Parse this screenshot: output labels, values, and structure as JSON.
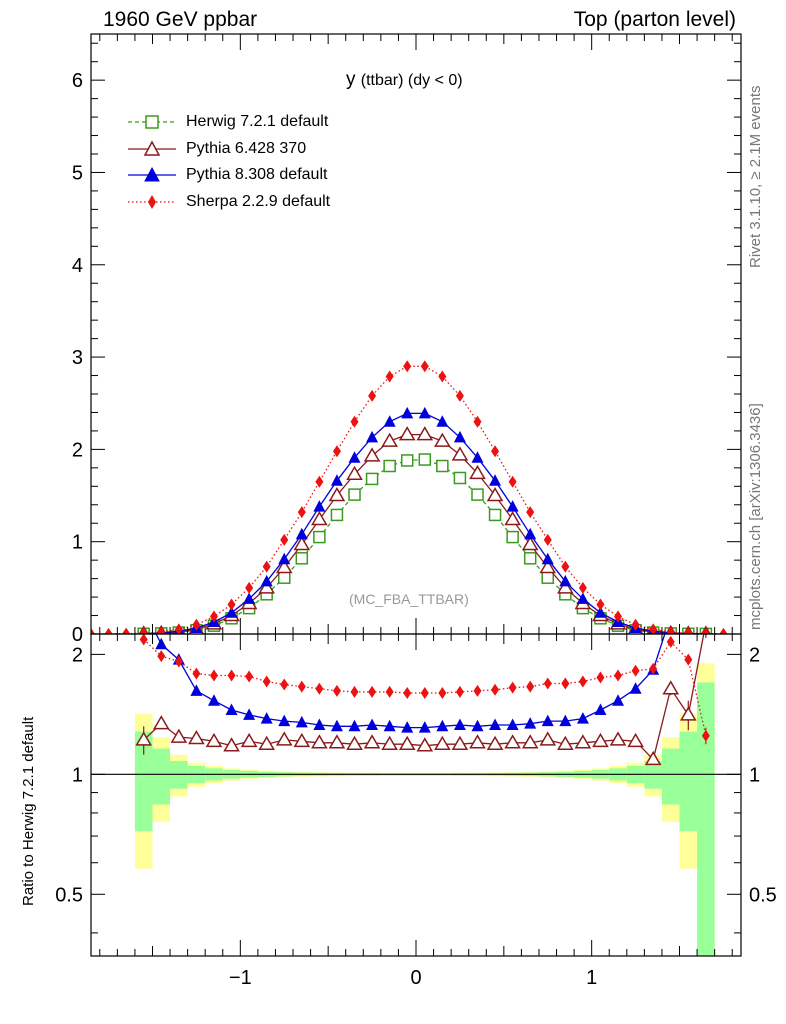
{
  "header": {
    "left": "1960 GeV ppbar",
    "right": "Top (parton level)"
  },
  "side_labels": {
    "rivet": "Rivet 3.1.10, ≥ 2.1M events",
    "source": "mcplots.cern.ch [arXiv:1306.3436]"
  },
  "plot_title": {
    "main": "y",
    "sub": "(ttbar) (dy < 0)"
  },
  "analysis_id": "(MC_FBA_TTBAR)",
  "ratio_ylabel": "Ratio to Herwig 7.2.1 default",
  "colors": {
    "herwig": "#3a9a1e",
    "pythia6": "#8b1a1a",
    "pythia8": "#0000dd",
    "sherpa": "#ee1111",
    "band_inner": "#99ff99",
    "band_outer": "#ffff99"
  },
  "chart_data": [
    {
      "type": "line",
      "panel": "main",
      "xlim": [
        -1.85,
        1.85
      ],
      "ylim": [
        0,
        6.5
      ],
      "yticks": [
        0,
        1,
        2,
        3,
        4,
        5,
        6
      ],
      "legend_position": "top-left",
      "x": [
        -1.9,
        -1.8,
        -1.7,
        -1.6,
        -1.5,
        -1.4,
        -1.3,
        -1.2,
        -1.1,
        -1.0,
        -0.9,
        -0.8,
        -0.7,
        -0.6,
        -0.5,
        -0.4,
        -0.3,
        -0.2,
        -0.1,
        0.0,
        0.1,
        0.2,
        0.3,
        0.4,
        0.5,
        0.6,
        0.7,
        0.8,
        0.9,
        1.0,
        1.1,
        1.2,
        1.3,
        1.4,
        1.5,
        1.6,
        1.7
      ],
      "series": [
        {
          "name": "Herwig 7.2.1 default",
          "marker": "open-square",
          "line": "dashed",
          "x": [
            -1.55,
            -1.45,
            -1.35,
            -1.25,
            -1.15,
            -1.05,
            -0.95,
            -0.85,
            -0.75,
            -0.65,
            -0.55,
            -0.45,
            -0.35,
            -0.25,
            -0.15,
            -0.05,
            0.05,
            0.15,
            0.25,
            0.35,
            0.45,
            0.55,
            0.65,
            0.75,
            0.85,
            0.95,
            1.05,
            1.15,
            1.25,
            1.35,
            1.45,
            1.55,
            1.65
          ],
          "values": [
            0.002,
            0.006,
            0.016,
            0.04,
            0.09,
            0.17,
            0.28,
            0.43,
            0.61,
            0.82,
            1.05,
            1.29,
            1.51,
            1.68,
            1.82,
            1.88,
            1.89,
            1.82,
            1.69,
            1.51,
            1.29,
            1.05,
            0.82,
            0.61,
            0.43,
            0.28,
            0.17,
            0.09,
            0.04,
            0.016,
            0.006,
            0.002,
            0.001
          ]
        },
        {
          "name": "Pythia 6.428 370",
          "marker": "open-triangle",
          "line": "solid",
          "x": [
            -1.55,
            -1.45,
            -1.35,
            -1.25,
            -1.15,
            -1.05,
            -0.95,
            -0.85,
            -0.75,
            -0.65,
            -0.55,
            -0.45,
            -0.35,
            -0.25,
            -0.15,
            -0.05,
            0.05,
            0.15,
            0.25,
            0.35,
            0.45,
            0.55,
            0.65,
            0.75,
            0.85,
            0.95,
            1.05,
            1.15,
            1.25,
            1.35,
            1.45,
            1.55,
            1.65
          ],
          "values": [
            0.003,
            0.008,
            0.02,
            0.05,
            0.11,
            0.2,
            0.33,
            0.5,
            0.72,
            0.97,
            1.24,
            1.5,
            1.73,
            1.93,
            2.09,
            2.16,
            2.16,
            2.09,
            1.94,
            1.74,
            1.5,
            1.24,
            0.97,
            0.72,
            0.5,
            0.33,
            0.2,
            0.11,
            0.05,
            0.02,
            0.008,
            0.003,
            0.001
          ]
        },
        {
          "name": "Pythia 8.308 default",
          "marker": "filled-triangle",
          "line": "solid",
          "x": [
            -1.55,
            -1.45,
            -1.35,
            -1.25,
            -1.15,
            -1.05,
            -0.95,
            -0.85,
            -0.75,
            -0.65,
            -0.55,
            -0.45,
            -0.35,
            -0.25,
            -0.15,
            -0.05,
            0.05,
            0.15,
            0.25,
            0.35,
            0.45,
            0.55,
            0.65,
            0.75,
            0.85,
            0.95,
            1.05,
            1.15,
            1.25,
            1.35,
            1.45,
            1.55,
            1.65
          ],
          "values": [
            0.004,
            0.012,
            0.03,
            0.065,
            0.13,
            0.23,
            0.38,
            0.57,
            0.81,
            1.08,
            1.38,
            1.66,
            1.91,
            2.13,
            2.3,
            2.39,
            2.39,
            2.3,
            2.13,
            1.91,
            1.66,
            1.38,
            1.08,
            0.81,
            0.57,
            0.38,
            0.23,
            0.13,
            0.065,
            0.03,
            0.012,
            0.004,
            0.001
          ]
        },
        {
          "name": "Sherpa 2.2.9 default",
          "marker": "filled-diamond",
          "line": "dotted",
          "x": [
            -1.85,
            -1.75,
            -1.65,
            -1.55,
            -1.45,
            -1.35,
            -1.25,
            -1.15,
            -1.05,
            -0.95,
            -0.85,
            -0.75,
            -0.65,
            -0.55,
            -0.45,
            -0.35,
            -0.25,
            -0.15,
            -0.05,
            0.05,
            0.15,
            0.25,
            0.35,
            0.45,
            0.55,
            0.65,
            0.75,
            0.85,
            0.95,
            1.05,
            1.15,
            1.25,
            1.35,
            1.45,
            1.55,
            1.65,
            1.75
          ],
          "values": [
            0.001,
            0.002,
            0.004,
            0.008,
            0.02,
            0.05,
            0.1,
            0.19,
            0.32,
            0.5,
            0.73,
            1.02,
            1.32,
            1.65,
            1.98,
            2.3,
            2.58,
            2.79,
            2.9,
            2.9,
            2.79,
            2.58,
            2.3,
            1.98,
            1.65,
            1.32,
            1.02,
            0.73,
            0.5,
            0.32,
            0.19,
            0.1,
            0.05,
            0.02,
            0.008,
            0.004,
            0.002
          ]
        }
      ]
    },
    {
      "type": "line",
      "panel": "ratio",
      "ylabel": "Ratio to Herwig 7.2.1 default",
      "xlim": [
        -1.85,
        1.85
      ],
      "ylim": [
        0.35,
        2.25
      ],
      "yticks": [
        0.5,
        1,
        2
      ],
      "xticks": [
        -1,
        0,
        1
      ],
      "reference_line": 1,
      "band": {
        "x": [
          -1.6,
          -1.5,
          -1.4,
          -1.3,
          -1.2,
          -1.1,
          -1.0,
          -0.9,
          -0.8,
          -0.7,
          -0.6,
          -0.5,
          -0.4,
          -0.3,
          -0.2,
          -0.1,
          0.0,
          0.1,
          0.2,
          0.3,
          0.4,
          0.5,
          0.6,
          0.7,
          0.8,
          0.9,
          1.0,
          1.1,
          1.2,
          1.3,
          1.4,
          1.5,
          1.6,
          1.7
        ],
        "inner": [
          0.28,
          0.16,
          0.08,
          0.05,
          0.035,
          0.025,
          0.02,
          0.015,
          0.012,
          0.01,
          0.009,
          0.008,
          0.007,
          0.007,
          0.006,
          0.006,
          0.006,
          0.006,
          0.007,
          0.007,
          0.008,
          0.009,
          0.01,
          0.012,
          0.015,
          0.02,
          0.025,
          0.035,
          0.05,
          0.08,
          0.16,
          0.28,
          0.7
        ],
        "outer": [
          0.42,
          0.24,
          0.12,
          0.07,
          0.05,
          0.035,
          0.028,
          0.022,
          0.017,
          0.014,
          0.012,
          0.011,
          0.01,
          0.01,
          0.009,
          0.009,
          0.009,
          0.009,
          0.01,
          0.01,
          0.011,
          0.012,
          0.014,
          0.017,
          0.022,
          0.028,
          0.035,
          0.05,
          0.07,
          0.12,
          0.24,
          0.42,
          0.9
        ]
      },
      "series": [
        {
          "name": "Pythia 6.428 370",
          "x": [
            -1.55,
            -1.45,
            -1.35,
            -1.25,
            -1.15,
            -1.05,
            -0.95,
            -0.85,
            -0.75,
            -0.65,
            -0.55,
            -0.45,
            -0.35,
            -0.25,
            -0.15,
            -0.05,
            0.05,
            0.15,
            0.25,
            0.35,
            0.45,
            0.55,
            0.65,
            0.75,
            0.85,
            0.95,
            1.05,
            1.15,
            1.25,
            1.35,
            1.45,
            1.55,
            1.65
          ],
          "values": [
            1.22,
            1.34,
            1.24,
            1.23,
            1.21,
            1.18,
            1.21,
            1.19,
            1.22,
            1.21,
            1.2,
            1.2,
            1.19,
            1.2,
            1.19,
            1.19,
            1.18,
            1.19,
            1.19,
            1.2,
            1.19,
            1.2,
            1.2,
            1.22,
            1.19,
            1.2,
            1.21,
            1.22,
            1.21,
            1.09,
            1.64,
            1.41,
            2.4
          ],
          "errors": [
            0.1,
            0.04,
            0.02,
            0.01,
            0.01,
            0.01,
            0.01,
            0.01,
            0.01,
            0.01,
            0.01,
            0.01,
            0.01,
            0.01,
            0.01,
            0.01,
            0.01,
            0.01,
            0.01,
            0.01,
            0.01,
            0.01,
            0.01,
            0.01,
            0.01,
            0.01,
            0.01,
            0.01,
            0.01,
            0.01,
            0.06,
            0.12,
            0.2
          ]
        },
        {
          "name": "Pythia 8.308 default",
          "x": [
            -1.55,
            -1.45,
            -1.35,
            -1.25,
            -1.15,
            -1.05,
            -0.95,
            -0.85,
            -0.75,
            -0.65,
            -0.55,
            -0.45,
            -0.35,
            -0.25,
            -0.15,
            -0.05,
            0.05,
            0.15,
            0.25,
            0.35,
            0.45,
            0.55,
            0.65,
            0.75,
            0.85,
            0.95,
            1.05,
            1.15,
            1.25,
            1.35,
            1.45
          ],
          "values": [
            2.6,
            2.12,
            1.94,
            1.62,
            1.53,
            1.45,
            1.41,
            1.38,
            1.36,
            1.35,
            1.33,
            1.32,
            1.32,
            1.33,
            1.32,
            1.31,
            1.31,
            1.32,
            1.33,
            1.32,
            1.33,
            1.33,
            1.34,
            1.36,
            1.36,
            1.38,
            1.45,
            1.53,
            1.64,
            1.83,
            2.5
          ],
          "errors": [
            0.1,
            0.05,
            0.02,
            0.01,
            0.01,
            0.01,
            0.01,
            0.01,
            0.01,
            0.01,
            0.01,
            0.01,
            0.01,
            0.01,
            0.01,
            0.01,
            0.01,
            0.01,
            0.01,
            0.01,
            0.01,
            0.01,
            0.01,
            0.01,
            0.01,
            0.01,
            0.01,
            0.01,
            0.01,
            0.02,
            0.1
          ]
        },
        {
          "name": "Sherpa 2.2.9 default",
          "x": [
            -1.55,
            -1.45,
            -1.35,
            -1.25,
            -1.15,
            -1.05,
            -0.95,
            -0.85,
            -0.75,
            -0.65,
            -0.55,
            -0.45,
            -0.35,
            -0.25,
            -0.15,
            -0.05,
            0.05,
            0.15,
            0.25,
            0.35,
            0.45,
            0.55,
            0.65,
            0.75,
            0.85,
            0.95,
            1.05,
            1.15,
            1.25,
            1.35,
            1.45,
            1.55,
            1.65
          ],
          "values": [
            2.18,
            1.98,
            1.92,
            1.79,
            1.77,
            1.77,
            1.76,
            1.71,
            1.68,
            1.66,
            1.64,
            1.62,
            1.61,
            1.61,
            1.61,
            1.6,
            1.6,
            1.6,
            1.61,
            1.62,
            1.63,
            1.65,
            1.66,
            1.69,
            1.69,
            1.71,
            1.75,
            1.77,
            1.82,
            1.84,
            2.15,
            1.94,
            1.25
          ],
          "errors": [
            0.04,
            0.03,
            0.01,
            0.01,
            0.01,
            0.01,
            0.01,
            0.01,
            0.01,
            0.01,
            0.01,
            0.01,
            0.01,
            0.01,
            0.01,
            0.01,
            0.01,
            0.01,
            0.01,
            0.01,
            0.01,
            0.01,
            0.01,
            0.01,
            0.01,
            0.01,
            0.01,
            0.01,
            0.01,
            0.01,
            0.02,
            0.04,
            0.06
          ]
        }
      ]
    }
  ]
}
